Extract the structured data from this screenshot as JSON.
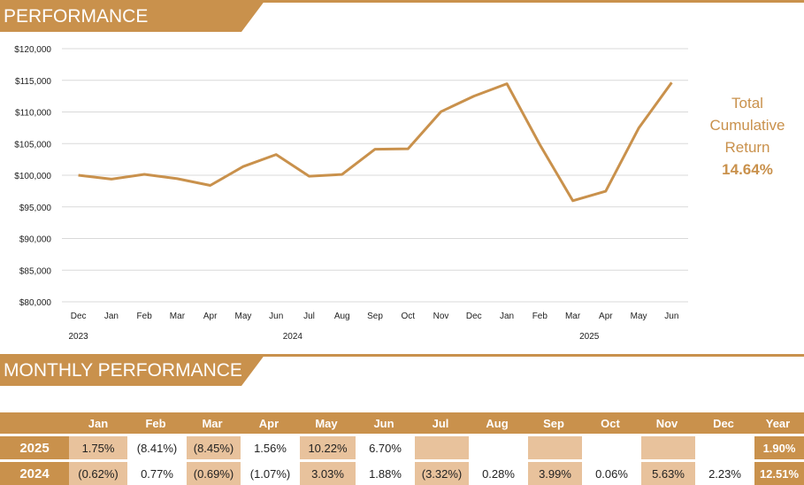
{
  "sections": {
    "performance_title": "PERFORMANCE",
    "monthly_title": "MONTHLY PERFORMANCE"
  },
  "colors": {
    "accent": "#c9914c",
    "highlight": "#e8c29c"
  },
  "callout": {
    "line1": "Total",
    "line2": "Cumulative",
    "line3": "Return",
    "value": "14.64%"
  },
  "chart_data": {
    "type": "line",
    "categories": [
      "Dec",
      "Jan",
      "Feb",
      "Mar",
      "Apr",
      "May",
      "Jun",
      "Jul",
      "Aug",
      "Sep",
      "Oct",
      "Nov",
      "Dec",
      "Jan",
      "Feb",
      "Mar",
      "Apr",
      "May",
      "Jun"
    ],
    "year_labels": [
      {
        "label": "2023",
        "at_index": 0
      },
      {
        "label": "2024",
        "at_index": 6.5
      },
      {
        "label": "2025",
        "at_index": 15.5
      }
    ],
    "series": [
      {
        "values": [
          100000,
          99380,
          100145,
          99455,
          98390,
          101372,
          103273,
          99843,
          100123,
          104118,
          104180,
          110045,
          112499,
          114468,
          104840,
          95975,
          97472,
          107434,
          114638
        ]
      }
    ],
    "ylim": [
      80000,
      120000
    ],
    "yticks": [
      "$80,000",
      "$85,000",
      "$90,000",
      "$95,000",
      "$100,000",
      "$105,000",
      "$110,000",
      "$115,000",
      "$120,000"
    ],
    "grid": true
  },
  "table": {
    "headers": [
      "",
      "Jan",
      "Feb",
      "Mar",
      "Apr",
      "May",
      "Jun",
      "Jul",
      "Aug",
      "Sep",
      "Oct",
      "Nov",
      "Dec",
      "Year"
    ],
    "rows": [
      {
        "year": "2025",
        "cells": [
          "1.75%",
          "(8.41%)",
          "(8.45%)",
          "1.56%",
          "10.22%",
          "6.70%",
          "",
          "",
          "",
          "",
          "",
          "",
          ""
        ],
        "total": "1.90%",
        "highlight": [
          true,
          false,
          true,
          false,
          true,
          false,
          true,
          false,
          true,
          false,
          true,
          false
        ]
      },
      {
        "year": "2024",
        "cells": [
          "(0.62%)",
          "0.77%",
          "(0.69%)",
          "(1.07%)",
          "3.03%",
          "1.88%",
          "(3.32%)",
          "0.28%",
          "3.99%",
          "0.06%",
          "5.63%",
          "2.23%"
        ],
        "total": "12.51%",
        "highlight": [
          true,
          false,
          true,
          false,
          true,
          false,
          true,
          false,
          true,
          false,
          true,
          false
        ]
      }
    ]
  }
}
